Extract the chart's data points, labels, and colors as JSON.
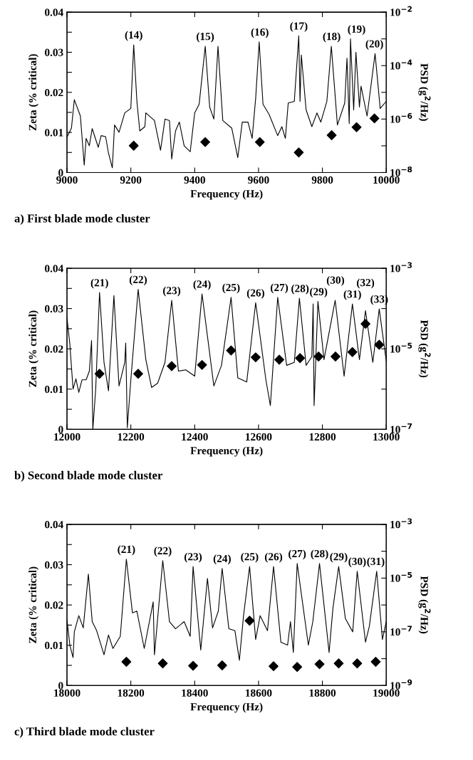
{
  "chart_data": [
    {
      "type": "scatter",
      "title": "a) First blade mode cluster",
      "xlabel": "Frequency (Hz)",
      "ylabel": "Zeta (% critical)",
      "y2label": "PSD (g$^{2}$/Hz)",
      "xlim": [
        9000,
        10000
      ],
      "xticks": [
        9000,
        9200,
        9400,
        9600,
        9800,
        10000
      ],
      "ylim": [
        0,
        0.04
      ],
      "yticks": [
        0,
        {
          "value": 0.005,
          "label": null
        },
        0.01,
        {
          "value": 0.015,
          "label": null
        },
        0.02,
        {
          "value": 0.025,
          "label": null
        },
        0.03,
        {
          "value": 0.035,
          "label": null
        },
        0.04
      ],
      "log": "y2",
      "y2lim": [
        1e-08,
        0.01
      ],
      "y2ticks": [
        {
          "value": 1e-08,
          "label": "10$^{−8}$"
        },
        {
          "value": 1e-07,
          "label": null
        },
        {
          "value": 1e-06,
          "label": "10$^{−6}$"
        },
        {
          "value": 1e-05,
          "label": null
        },
        {
          "value": 0.0001,
          "label": "10$^{−4}$"
        },
        {
          "value": 0.001,
          "label": null
        },
        {
          "value": 0.01,
          "label": "10$^{−2}$"
        }
      ],
      "annotations": [
        "(14)",
        "(15)",
        "(16)",
        "(17)",
        "(18)",
        "(19)",
        "(20)"
      ],
      "series": [
        {
          "type": "line",
          "axis": "y2",
          "color": "#000000",
          "x": [
            9000,
            9014,
            9023,
            9042,
            9054,
            9060,
            9070,
            9079,
            9098,
            9107,
            9121,
            9130,
            9142,
            9149,
            9163,
            9181,
            9200,
            9209,
            9219,
            9228,
            9244,
            9247,
            9274,
            9293,
            9307,
            9321,
            9328,
            9340,
            9352,
            9367,
            9386,
            9400,
            9414,
            9433,
            9447,
            9460,
            9473,
            9488,
            9516,
            9535,
            9549,
            9567,
            9580,
            9591,
            9602,
            9614,
            9633,
            9660,
            9673,
            9684,
            9693,
            9712,
            9726,
            9730,
            9734,
            9749,
            9767,
            9783,
            9795,
            9814,
            9828,
            9847,
            9870,
            9877,
            9884,
            9888,
            9898,
            9905,
            9916,
            9921,
            9940,
            9965,
            9981,
            10000
          ],
          "values": [
            2.1e-07,
            4.6e-07,
            5.3e-06,
            1.3e-06,
            1.9e-08,
            1.9e-07,
            1e-07,
            4.4e-07,
            8.8e-08,
            2.4e-07,
            2.2e-07,
            5.3e-08,
            1.5e-08,
            6e-07,
            3.2e-07,
            1.7e-06,
            2.5e-06,
            0.0006,
            4.6e-06,
            3.6e-07,
            5.2e-07,
            1.7e-06,
            8.8e-07,
            6.8e-08,
            1e-06,
            8.8e-07,
            3.2e-08,
            3.6e-07,
            7.7e-07,
            1e-07,
            6e-08,
            1.7e-06,
            3.6e-06,
            0.00053,
            2.8e-06,
            1e-06,
            0.00053,
            8.8e-07,
            4.6e-07,
            3.6e-08,
            7.7e-07,
            7.7e-07,
            1.9e-07,
            6e-06,
            0.00077,
            3.6e-06,
            1.5e-06,
            2.4e-07,
            5.2e-07,
            1.9e-07,
            4e-06,
            4.6e-06,
            0.0013,
            4.6e-06,
            0.00025,
            2.2e-06,
            5.2e-07,
            1.7e-06,
            7.7e-07,
            4.6e-06,
            0.00053,
            6e-07,
            4e-06,
            0.00019,
            6.8e-07,
            0.001,
            2.2e-06,
            0.00032,
            2.8e-06,
            1.7e-05,
            1.3e-06,
            0.00028,
            2.5e-06,
            4.6e-06
          ]
        },
        {
          "marker": "diamond",
          "color": "#000000",
          "x": [
            9209,
            9433,
            9604,
            9726,
            9829,
            9907,
            9963
          ],
          "values": [
            0.0067,
            0.0076,
            0.0076,
            0.005,
            0.0093,
            0.0113,
            0.0135
          ]
        }
      ]
    },
    {
      "type": "scatter",
      "title": "b) Second blade mode cluster",
      "xlabel": "Frequency (Hz)",
      "ylabel": "Zeta (% critical)",
      "y2label": "PSD (g$^{2}$/Hz)",
      "xlim": [
        12000,
        13000
      ],
      "xticks": [
        12000,
        12200,
        12400,
        12600,
        12800,
        13000
      ],
      "ylim": [
        0,
        0.04
      ],
      "yticks": [
        0,
        {
          "value": 0.005,
          "label": null
        },
        0.01,
        {
          "value": 0.015,
          "label": null
        },
        0.02,
        {
          "value": 0.025,
          "label": null
        },
        0.03,
        {
          "value": 0.035,
          "label": null
        },
        0.04
      ],
      "log": "y2",
      "y2lim": [
        1e-07,
        0.001
      ],
      "y2ticks": [
        {
          "value": 1e-07,
          "label": "10$^{−7}$"
        },
        {
          "value": 1e-06,
          "label": null
        },
        {
          "value": 1e-05,
          "label": "10$^{−5}$"
        },
        {
          "value": 0.0001,
          "label": null
        },
        {
          "value": 0.001,
          "label": "10$^{−3}$"
        }
      ],
      "annotations": [
        "(21)",
        "(22)",
        "(23)",
        "(24)",
        "(25)",
        "(26)",
        "(27)",
        "(28)",
        "(29)",
        "(30)",
        "(31)",
        "(32)",
        "(33)"
      ],
      "series": [
        {
          "type": "line",
          "axis": "y2",
          "color": "#000000",
          "x": [
            12000,
            12009,
            12019,
            12028,
            12037,
            12047,
            12060,
            12070,
            12077,
            12081,
            12090,
            12102,
            12116,
            12130,
            12147,
            12163,
            12181,
            12184,
            12189,
            12200,
            12223,
            12247,
            12265,
            12284,
            12307,
            12328,
            12349,
            12372,
            12400,
            12423,
            12460,
            12484,
            12514,
            12535,
            12563,
            12591,
            12623,
            12637,
            12660,
            12688,
            12712,
            12728,
            12749,
            12767,
            12771,
            12774,
            12786,
            12805,
            12840,
            12868,
            12894,
            12916,
            12935,
            12958,
            12978,
            13000
          ],
          "values": [
            5.9e-05,
            1.3e-05,
            1e-06,
            1.8e-06,
            8.3e-07,
            1.7e-06,
            1.7e-06,
            2.8e-06,
            1.6e-05,
            1e-07,
            1e-06,
            0.00025,
            4.6e-06,
            9.1e-07,
            0.00021,
            1.2e-06,
            4.6e-06,
            1.4e-05,
            1.1e-07,
            1.7e-06,
            0.0003,
            5.4e-06,
            1.1e-06,
            1.4e-06,
            4.6e-06,
            0.00016,
            2.8e-06,
            3e-06,
            2.1e-06,
            0.00023,
            1.2e-06,
            3.9e-06,
            0.00019,
            1.9e-06,
            1.5e-06,
            0.00014,
            1.7e-06,
            3.9e-07,
            0.00019,
            3.9e-06,
            4.6e-06,
            0.00018,
            3.9e-06,
            6.4e-06,
            0.00013,
            3.9e-07,
            0.00015,
            5.4e-06,
            0.00016,
            2.1e-06,
            0.00013,
            5.4e-06,
            8.9e-05,
            4.6e-06,
            9.8e-05,
            5e-06
          ]
        },
        {
          "marker": "diamond",
          "color": "#000000",
          "x": [
            12102,
            12223,
            12328,
            12423,
            12514,
            12591,
            12665,
            12730,
            12788,
            12841,
            12894,
            12935,
            12978
          ],
          "values": [
            0.0138,
            0.0138,
            0.0157,
            0.016,
            0.0196,
            0.0179,
            0.0173,
            0.0177,
            0.0181,
            0.0181,
            0.0192,
            0.0262,
            0.021
          ]
        }
      ]
    },
    {
      "type": "scatter",
      "title": "c) Third blade mode cluster",
      "xlabel": "Frequency (Hz)",
      "ylabel": "Zeta (% critical)",
      "y2label": "PSD (g$^{2}$/Hz)",
      "xlim": [
        18000,
        19000
      ],
      "xticks": [
        18000,
        18200,
        18400,
        18600,
        18800,
        19000
      ],
      "ylim": [
        0,
        0.04
      ],
      "yticks": [
        0,
        {
          "value": 0.005,
          "label": null
        },
        0.01,
        {
          "value": 0.015,
          "label": null
        },
        0.02,
        {
          "value": 0.025,
          "label": null
        },
        0.03,
        {
          "value": 0.035,
          "label": null
        },
        0.04
      ],
      "log": "y2",
      "y2lim": [
        1e-09,
        0.001
      ],
      "y2ticks": [
        {
          "value": 1e-09,
          "label": "10$^{−9}$"
        },
        {
          "value": 1e-08,
          "label": null
        },
        {
          "value": 1e-07,
          "label": "10$^{−7}$"
        },
        {
          "value": 1e-06,
          "label": null
        },
        {
          "value": 1e-05,
          "label": "10$^{−5}$"
        },
        {
          "value": 0.0001,
          "label": null
        },
        {
          "value": 0.001,
          "label": "10$^{−3}$"
        }
      ],
      "annotations": [
        "(21)",
        "(22)",
        "(23)",
        "(24)",
        "(25)",
        "(26)",
        "(27)",
        "(28)",
        "(29)",
        "(30)",
        "(31)"
      ],
      "series": [
        {
          "type": "line",
          "axis": "y2",
          "color": "#000000",
          "x": [
            18000,
            18009,
            18019,
            18023,
            18037,
            18051,
            18067,
            18079,
            18093,
            18116,
            18130,
            18144,
            18167,
            18186,
            18205,
            18219,
            18242,
            18270,
            18274,
            18300,
            18321,
            18340,
            18367,
            18386,
            18395,
            18419,
            18440,
            18456,
            18474,
            18486,
            18507,
            18526,
            18540,
            18553,
            18572,
            18591,
            18605,
            18628,
            18647,
            18670,
            18691,
            18700,
            18709,
            18721,
            18756,
            18770,
            18791,
            18821,
            18833,
            18851,
            18872,
            18895,
            18909,
            18935,
            18947,
            18970,
            18988,
            19000
          ],
          "values": [
            2.8e-07,
            3.2e-08,
            1.1e-08,
            1e-07,
            4e-07,
            1.4e-07,
            1.4e-05,
            2.4e-07,
            1.1e-07,
            1.4e-08,
            7.6e-08,
            2.4e-08,
            6.8e-08,
            5.1e-05,
            5.1e-07,
            5.9e-07,
            2.4e-08,
            1.3e-06,
            1.4e-08,
            4.5e-05,
            2.4e-07,
            1.3e-07,
            2.4e-07,
            6.8e-08,
            2.7e-05,
            2.1e-08,
            9.8e-06,
            1.4e-07,
            5.9e-07,
            2.3e-05,
            1.3e-07,
            1.1e-07,
            8.7e-09,
            4e-07,
            2.7e-05,
            5.2e-08,
            4e-07,
            1.1e-07,
            2.7e-05,
            4.1e-08,
            3.2e-08,
            2.4e-07,
            1.7e-08,
            3.5e-05,
            3.2e-08,
            2.4e-07,
            3.5e-05,
            1.7e-08,
            7.6e-07,
            2.7e-05,
            3.1e-07,
            1e-07,
            1.8e-05,
            4.1e-08,
            1.6e-07,
            1.8e-05,
            5.2e-08,
            2.4e-07
          ]
        },
        {
          "marker": "diamond",
          "color": "#000000",
          "x": [
            18186,
            18300,
            18395,
            18486,
            18572,
            18647,
            18721,
            18791,
            18851,
            18909,
            18967
          ],
          "values": [
            0.0059,
            0.0055,
            0.0049,
            0.005,
            0.0161,
            0.0048,
            0.0046,
            0.0053,
            0.0055,
            0.0055,
            0.0059
          ]
        }
      ]
    }
  ]
}
